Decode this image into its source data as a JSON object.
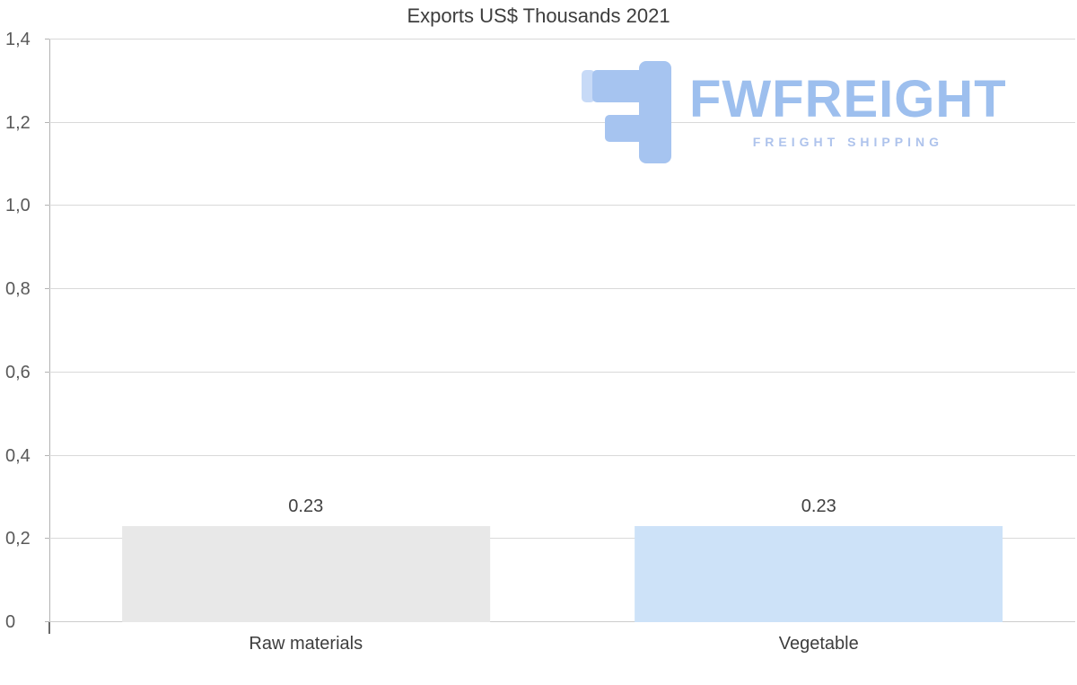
{
  "title": "Exports US$ Thousands 2021",
  "chart_data": {
    "type": "bar",
    "title": "Exports US$ Thousands 2021",
    "categories": [
      "Raw materials",
      "Vegetable"
    ],
    "values": [
      0.23,
      0.23
    ],
    "data_labels": [
      "0.23",
      "0.23"
    ],
    "bar_colors": [
      "#e8e8e8",
      "#cde2f8"
    ],
    "xlabel": "",
    "ylabel": "",
    "ylim": [
      0,
      1.4
    ],
    "ytick_step": 0.2,
    "yticks": [
      {
        "value": 0,
        "label": "0"
      },
      {
        "value": 0.2,
        "label": "0,2"
      },
      {
        "value": 0.4,
        "label": "0,4"
      },
      {
        "value": 0.6,
        "label": "0,6"
      },
      {
        "value": 0.8,
        "label": "0,8"
      },
      {
        "value": 1.0,
        "label": "1,0"
      },
      {
        "value": 1.2,
        "label": "1,2"
      },
      {
        "value": 1.4,
        "label": "1,4"
      }
    ],
    "grid": "horizontal",
    "legend": "none"
  },
  "watermark": {
    "brand": "FWFREIGHT",
    "tagline": "FREIGHT SHIPPING",
    "logo_color": "#a6c4f0",
    "text_color": "#9dbfee"
  },
  "colors": {
    "gridline": "#d9d9d9",
    "axis": "#b3b3b3",
    "title_text": "#3d3d3d",
    "tick_text": "#595959"
  }
}
